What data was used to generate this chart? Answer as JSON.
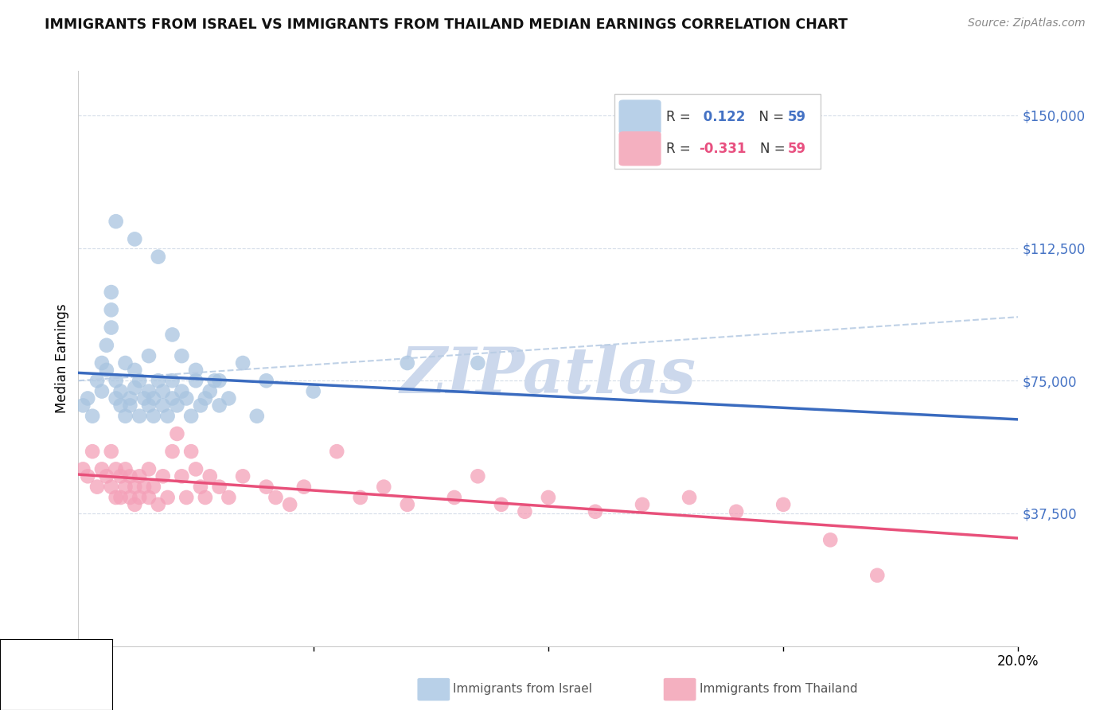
{
  "title": "IMMIGRANTS FROM ISRAEL VS IMMIGRANTS FROM THAILAND MEDIAN EARNINGS CORRELATION CHART",
  "source": "Source: ZipAtlas.com",
  "ylabel": "Median Earnings",
  "xlim": [
    0.0,
    0.2
  ],
  "ylim": [
    0,
    162500
  ],
  "r_israel": 0.122,
  "r_thailand": -0.331,
  "n_israel": 59,
  "n_thailand": 59,
  "color_israel": "#a8c4e0",
  "color_thailand": "#f4a0b8",
  "line_color_israel": "#3a6bbf",
  "line_color_thailand": "#e8507a",
  "line_color_dashed": "#b8cce4",
  "watermark": "ZIPatlas",
  "watermark_color": "#ccd8ec",
  "legend_box_color_israel": "#b8d0e8",
  "legend_box_color_thailand": "#f4b0c0",
  "israel_x": [
    0.001,
    0.002,
    0.003,
    0.004,
    0.005,
    0.005,
    0.006,
    0.006,
    0.007,
    0.007,
    0.007,
    0.008,
    0.008,
    0.009,
    0.009,
    0.01,
    0.01,
    0.011,
    0.011,
    0.012,
    0.012,
    0.013,
    0.013,
    0.014,
    0.015,
    0.015,
    0.016,
    0.016,
    0.017,
    0.018,
    0.018,
    0.019,
    0.02,
    0.02,
    0.021,
    0.022,
    0.023,
    0.024,
    0.025,
    0.026,
    0.027,
    0.028,
    0.029,
    0.03,
    0.032,
    0.035,
    0.038,
    0.04,
    0.05,
    0.07,
    0.008,
    0.012,
    0.015,
    0.017,
    0.02,
    0.022,
    0.025,
    0.03,
    0.085
  ],
  "israel_y": [
    68000,
    70000,
    65000,
    75000,
    80000,
    72000,
    78000,
    85000,
    90000,
    95000,
    100000,
    70000,
    75000,
    68000,
    72000,
    65000,
    80000,
    70000,
    68000,
    73000,
    78000,
    65000,
    75000,
    70000,
    72000,
    68000,
    65000,
    70000,
    75000,
    68000,
    72000,
    65000,
    75000,
    70000,
    68000,
    72000,
    70000,
    65000,
    75000,
    68000,
    70000,
    72000,
    75000,
    68000,
    70000,
    80000,
    65000,
    75000,
    72000,
    80000,
    120000,
    115000,
    82000,
    110000,
    88000,
    82000,
    78000,
    75000,
    80000
  ],
  "thailand_x": [
    0.001,
    0.002,
    0.003,
    0.004,
    0.005,
    0.006,
    0.007,
    0.007,
    0.008,
    0.008,
    0.009,
    0.009,
    0.01,
    0.01,
    0.011,
    0.011,
    0.012,
    0.012,
    0.013,
    0.013,
    0.014,
    0.015,
    0.015,
    0.016,
    0.017,
    0.018,
    0.019,
    0.02,
    0.021,
    0.022,
    0.023,
    0.024,
    0.025,
    0.026,
    0.027,
    0.028,
    0.03,
    0.032,
    0.035,
    0.04,
    0.042,
    0.045,
    0.048,
    0.055,
    0.06,
    0.065,
    0.07,
    0.08,
    0.085,
    0.09,
    0.095,
    0.1,
    0.11,
    0.12,
    0.13,
    0.14,
    0.15,
    0.16,
    0.17
  ],
  "thailand_y": [
    50000,
    48000,
    55000,
    45000,
    50000,
    48000,
    55000,
    45000,
    50000,
    42000,
    48000,
    42000,
    50000,
    45000,
    48000,
    42000,
    45000,
    40000,
    48000,
    42000,
    45000,
    50000,
    42000,
    45000,
    40000,
    48000,
    42000,
    55000,
    60000,
    48000,
    42000,
    55000,
    50000,
    45000,
    42000,
    48000,
    45000,
    42000,
    48000,
    45000,
    42000,
    40000,
    45000,
    55000,
    42000,
    45000,
    40000,
    42000,
    48000,
    40000,
    38000,
    42000,
    38000,
    40000,
    42000,
    38000,
    40000,
    30000,
    20000
  ]
}
